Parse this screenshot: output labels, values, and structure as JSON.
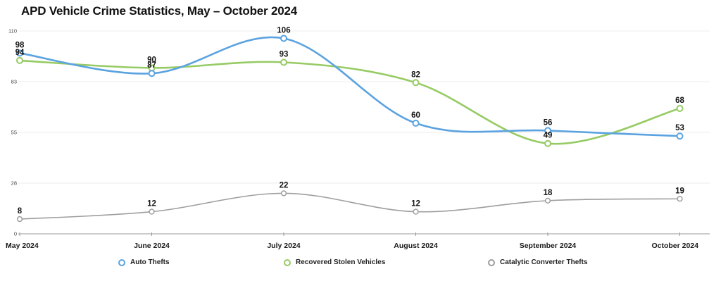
{
  "title": "APD Vehicle Crime Statistics, May – October 2024",
  "chart_data": {
    "type": "line",
    "title": "APD Vehicle Crime Statistics, May – October 2024",
    "categories": [
      "May 2024",
      "June 2024",
      "July 2024",
      "August 2024",
      "September 2024",
      "October 2024"
    ],
    "series": [
      {
        "name": "Auto Thefts",
        "color": "#5ba3e0",
        "values": [
          98,
          87,
          106,
          60,
          56,
          53
        ]
      },
      {
        "name": "Recovered Stolen Vehicles",
        "color": "#96cb64",
        "values": [
          94,
          90,
          93,
          82,
          49,
          68
        ]
      },
      {
        "name": "Catalytic Converter Thefts",
        "color": "#9e9e9e",
        "values": [
          8,
          12,
          22,
          12,
          18,
          19
        ]
      }
    ],
    "y_ticks": [
      0,
      28,
      55,
      83,
      110
    ],
    "ylim": [
      0,
      110
    ],
    "xlabel": "",
    "ylabel": "",
    "grid": true,
    "data_labels": true,
    "legend_position": "bottom",
    "colors": {
      "background": "#ffffff",
      "gridline": "#ededed",
      "axis_line": "#9a9a9a",
      "tick_label": "#444444",
      "data_label": "#141414",
      "x_label": "#1a1a1a"
    }
  }
}
